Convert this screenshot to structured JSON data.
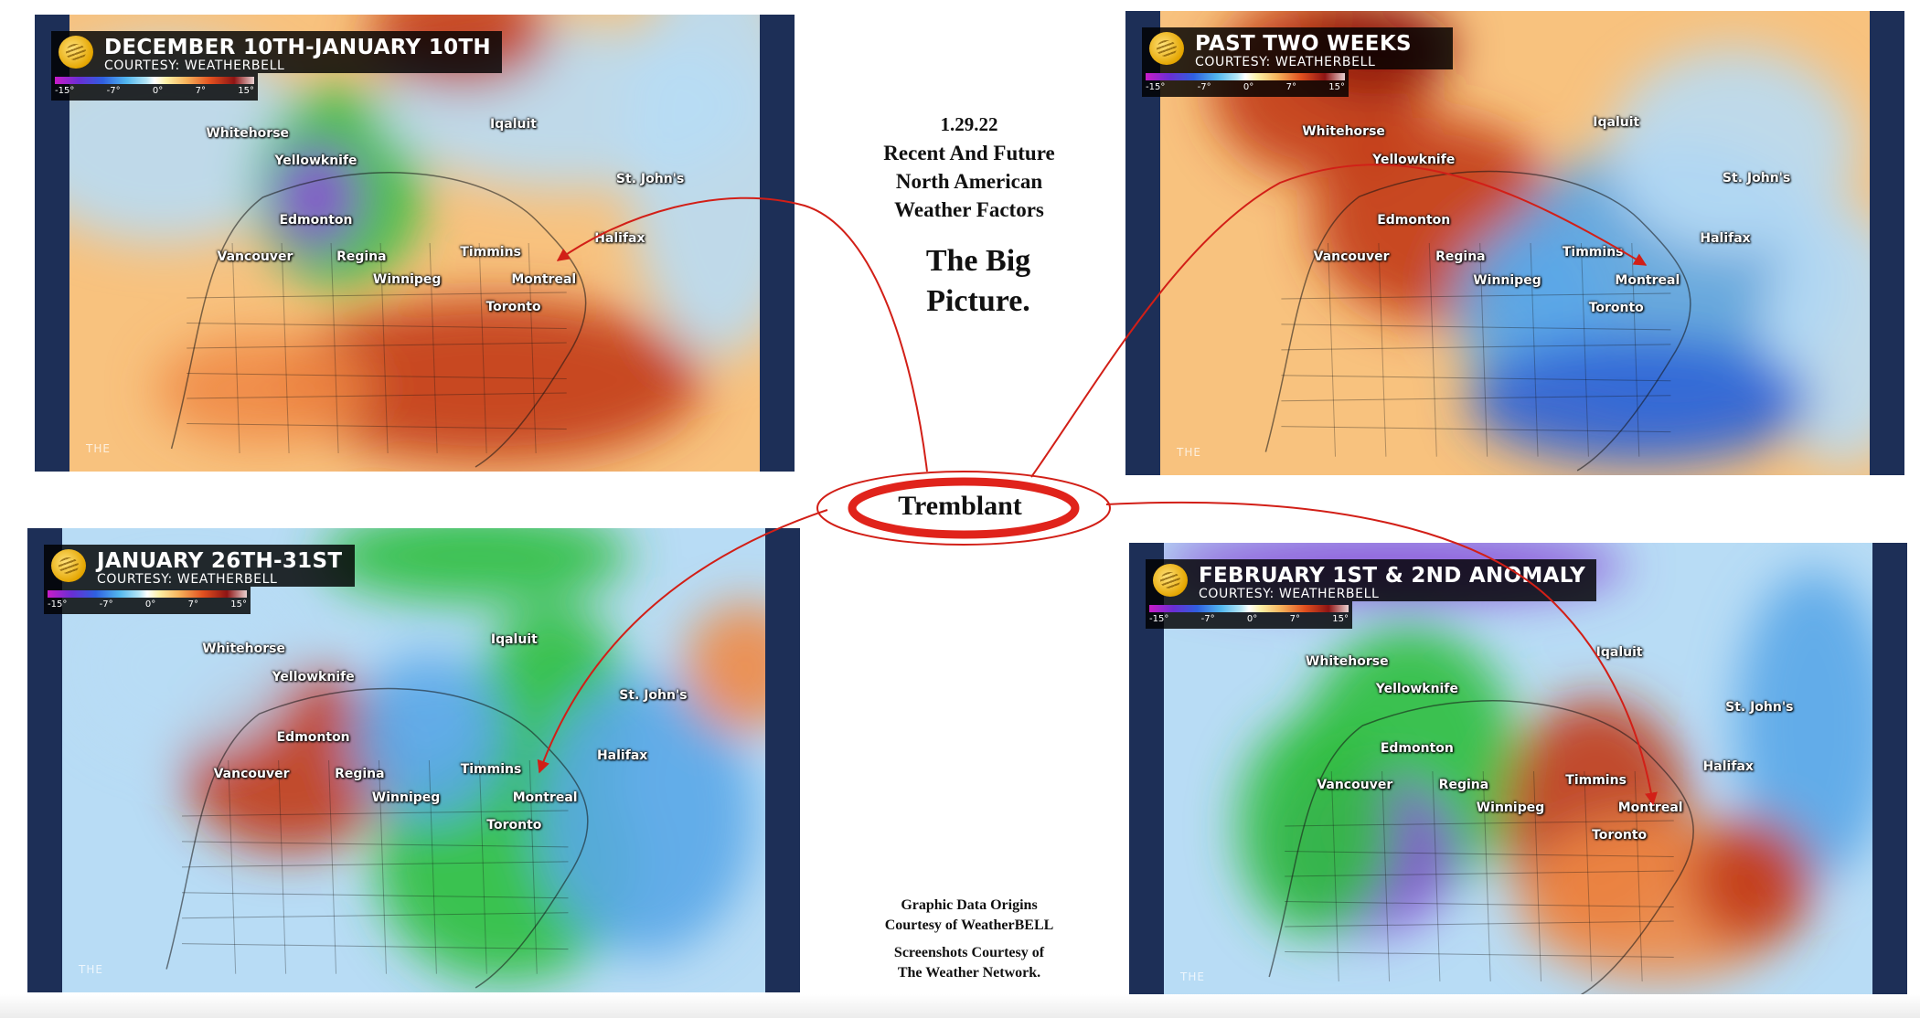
{
  "header": {
    "date": "1.29.22",
    "heading_lines": [
      "Recent And Future",
      "North American",
      "Weather Factors"
    ],
    "big_picture_lines": [
      "The Big",
      "Picture."
    ]
  },
  "focus": {
    "label": "Tremblant",
    "ring_color": "#e0231b"
  },
  "credits": {
    "data_lines": [
      "Graphic Data Origins",
      "Courtesy of WeatherBELL"
    ],
    "screens_lines": [
      "Screenshots Courtesy of",
      "The Weather Network."
    ]
  },
  "legend_ticks": [
    "-15°",
    "-7°",
    "0°",
    "7°",
    "15°"
  ],
  "watermark": "THE",
  "colors": {
    "bar": "#1d2f57",
    "warm_light": "#f8c27e",
    "warm": "#f08a45",
    "warm_dark": "#c23a1a",
    "warm_extreme": "#8a1010",
    "cool_light": "#b8dcf5",
    "cool": "#5aa7e8",
    "cool_dark": "#2c63d6",
    "green": "#2fbf3e",
    "purple": "#8a4fd8",
    "arrow": "#d21f17"
  },
  "maps": [
    {
      "title": "DECEMBER 10TH-JANUARY 10TH",
      "subtitle": "COURTESY: WEATHERBELL",
      "base": "warm",
      "cities": [
        "Whitehorse",
        "Yellowknife",
        "Iqaluit",
        "St. John's",
        "Edmonton",
        "Vancouver",
        "Regina",
        "Winnipeg",
        "Timmins",
        "Halifax",
        "Montreal",
        "Toronto"
      ]
    },
    {
      "title": "PAST TWO WEEKS",
      "subtitle": "COURTESY: WEATHERBELL",
      "base": "warm",
      "cities": [
        "Whitehorse",
        "Yellowknife",
        "Iqaluit",
        "St. John's",
        "Edmonton",
        "Vancouver",
        "Regina",
        "Winnipeg",
        "Timmins",
        "Halifax",
        "Montreal",
        "Toronto"
      ]
    },
    {
      "title": "JANUARY 26TH-31ST",
      "subtitle": "COURTESY: WEATHERBELL",
      "base": "cool",
      "cities": [
        "Whitehorse",
        "Yellowknife",
        "Iqaluit",
        "St. John's",
        "Edmonton",
        "Vancouver",
        "Regina",
        "Winnipeg",
        "Timmins",
        "Halifax",
        "Montreal",
        "Toronto"
      ]
    },
    {
      "title": "FEBRUARY 1ST & 2ND ANOMALY",
      "subtitle": "COURTESY: WEATHERBELL",
      "base": "cool",
      "cities": [
        "Whitehorse",
        "Yellowknife",
        "Iqaluit",
        "St. John's",
        "Edmonton",
        "Vancouver",
        "Regina",
        "Winnipeg",
        "Timmins",
        "Halifax",
        "Montreal",
        "Toronto"
      ]
    }
  ]
}
